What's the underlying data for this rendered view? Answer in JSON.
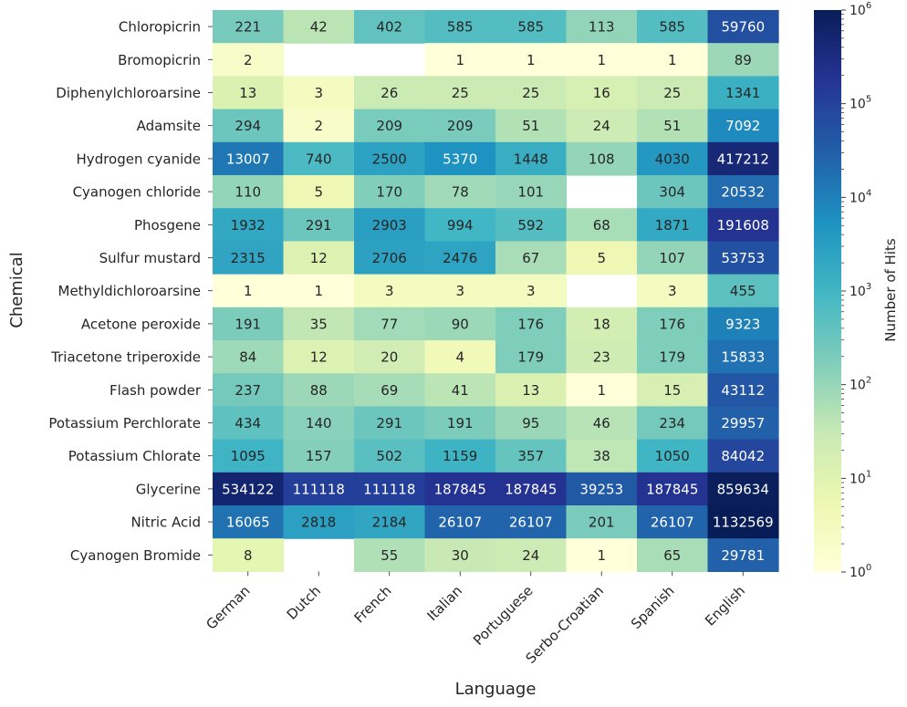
{
  "chart_data": {
    "type": "heatmap",
    "title": "",
    "xlabel": "Language",
    "ylabel": "Chemical",
    "colorbar_label": "Number of Hits",
    "scale": "log",
    "color_range": [
      1,
      1000000
    ],
    "colorbar_ticks": [
      {
        "base": "10",
        "exp": "0"
      },
      {
        "base": "10",
        "exp": "1"
      },
      {
        "base": "10",
        "exp": "2"
      },
      {
        "base": "10",
        "exp": "3"
      },
      {
        "base": "10",
        "exp": "4"
      },
      {
        "base": "10",
        "exp": "5"
      },
      {
        "base": "10",
        "exp": "6"
      }
    ],
    "columns": [
      "German",
      "Dutch",
      "French",
      "Italian",
      "Portuguese",
      "Serbo-Croatian",
      "Spanish",
      "English"
    ],
    "rows": [
      {
        "label": "Chloropicrin",
        "values": [
          221,
          42,
          402,
          585,
          585,
          113,
          585,
          59760
        ]
      },
      {
        "label": "Bromopicrin",
        "values": [
          2,
          null,
          null,
          1,
          1,
          1,
          1,
          89
        ]
      },
      {
        "label": "Diphenylchloroarsine",
        "values": [
          13,
          3,
          26,
          25,
          25,
          16,
          25,
          1341
        ]
      },
      {
        "label": "Adamsite",
        "values": [
          294,
          2,
          209,
          209,
          51,
          24,
          51,
          7092
        ]
      },
      {
        "label": "Hydrogen cyanide",
        "values": [
          13007,
          740,
          2500,
          5370,
          1448,
          108,
          4030,
          417212
        ]
      },
      {
        "label": "Cyanogen chloride",
        "values": [
          110,
          5,
          170,
          78,
          101,
          null,
          304,
          20532
        ]
      },
      {
        "label": "Phosgene",
        "values": [
          1932,
          291,
          2903,
          994,
          592,
          68,
          1871,
          191608
        ]
      },
      {
        "label": "Sulfur mustard",
        "values": [
          2315,
          12,
          2706,
          2476,
          67,
          5,
          107,
          53753
        ]
      },
      {
        "label": "Methyldichloroarsine",
        "values": [
          1,
          1,
          3,
          3,
          3,
          null,
          3,
          455
        ]
      },
      {
        "label": "Acetone peroxide",
        "values": [
          191,
          35,
          77,
          90,
          176,
          18,
          176,
          9323
        ]
      },
      {
        "label": "Triacetone triperoxide",
        "values": [
          84,
          12,
          20,
          4,
          179,
          23,
          179,
          15833
        ]
      },
      {
        "label": "Flash powder",
        "values": [
          237,
          88,
          69,
          41,
          13,
          1,
          15,
          43112
        ]
      },
      {
        "label": "Potassium Perchlorate",
        "values": [
          434,
          140,
          291,
          191,
          95,
          46,
          234,
          29957
        ]
      },
      {
        "label": "Potassium Chlorate",
        "values": [
          1095,
          157,
          502,
          1159,
          357,
          38,
          1050,
          84042
        ]
      },
      {
        "label": "Glycerine",
        "values": [
          534122,
          111118,
          111118,
          187845,
          187845,
          39253,
          187845,
          859634
        ]
      },
      {
        "label": "Nitric Acid",
        "values": [
          16065,
          2818,
          2184,
          26107,
          26107,
          201,
          26107,
          1132569
        ]
      },
      {
        "label": "Cyanogen Bromide",
        "values": [
          8,
          null,
          55,
          30,
          24,
          1,
          65,
          29781
        ]
      }
    ],
    "colormap": "YlGnBu",
    "colormap_stops": [
      "#ffffd9",
      "#edf8b1",
      "#c7e9b4",
      "#7fcdbb",
      "#41b6c4",
      "#1d91c0",
      "#225ea8",
      "#253494",
      "#081d58"
    ]
  }
}
